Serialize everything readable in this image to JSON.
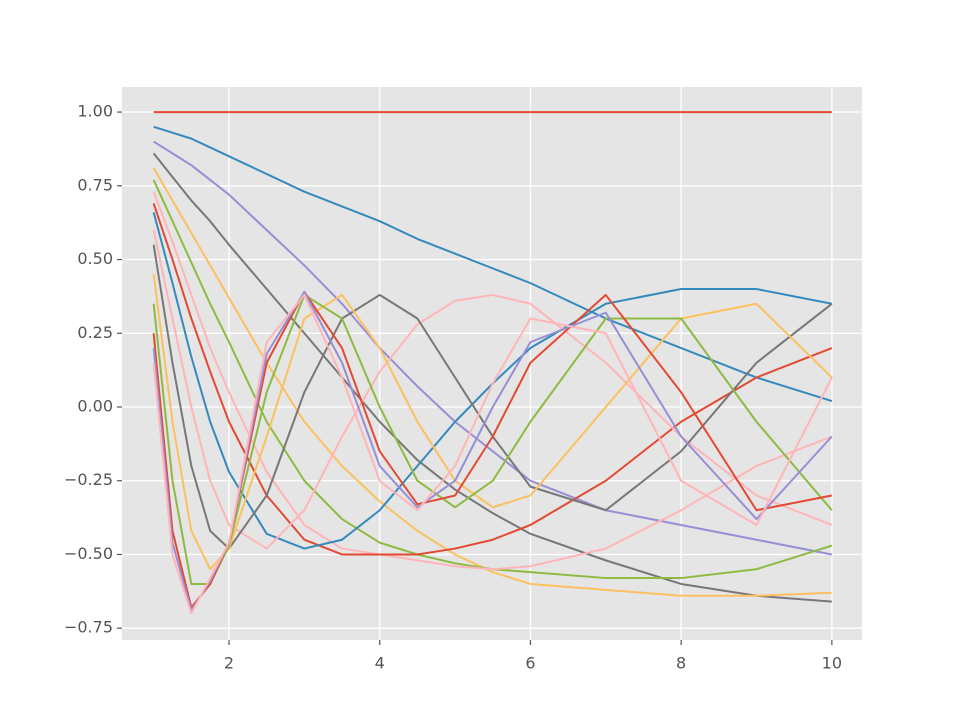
{
  "chart_data": {
    "type": "line",
    "x": [
      1,
      1.25,
      1.5,
      1.75,
      2,
      2.5,
      3,
      3.5,
      4,
      4.5,
      5,
      5.5,
      6,
      7,
      8,
      9,
      10
    ],
    "series": [
      {
        "color": "#E24A33",
        "values": [
          1,
          1,
          1,
          1,
          1,
          1,
          1,
          1,
          1,
          1,
          1,
          1,
          1,
          1,
          1,
          1,
          1
        ]
      },
      {
        "color": "#348ABD",
        "values": [
          0.95,
          0.93,
          0.91,
          0.88,
          0.85,
          0.79,
          0.73,
          0.68,
          0.63,
          0.57,
          0.52,
          0.47,
          0.42,
          0.3,
          0.2,
          0.1,
          0.02
        ]
      },
      {
        "color": "#988ED5",
        "values": [
          0.9,
          0.86,
          0.82,
          0.77,
          0.72,
          0.6,
          0.48,
          0.35,
          0.2,
          0.07,
          -0.05,
          -0.15,
          -0.25,
          -0.35,
          -0.4,
          -0.45,
          -0.5
        ]
      },
      {
        "color": "#777777",
        "values": [
          0.86,
          0.78,
          0.7,
          0.63,
          0.55,
          0.4,
          0.25,
          0.1,
          -0.05,
          -0.18,
          -0.28,
          -0.36,
          -0.43,
          -0.52,
          -0.6,
          -0.64,
          -0.66
        ]
      },
      {
        "color": "#FBC15E",
        "values": [
          0.81,
          0.7,
          0.59,
          0.48,
          0.37,
          0.15,
          -0.05,
          -0.2,
          -0.32,
          -0.42,
          -0.5,
          -0.56,
          -0.6,
          -0.62,
          -0.64,
          -0.64,
          -0.63
        ]
      },
      {
        "color": "#8EBA42",
        "values": [
          0.77,
          0.63,
          0.49,
          0.35,
          0.22,
          -0.05,
          -0.25,
          -0.38,
          -0.46,
          -0.5,
          -0.53,
          -0.55,
          -0.56,
          -0.58,
          -0.58,
          -0.55,
          -0.47
        ]
      },
      {
        "color": "#FFB5B8",
        "values": [
          0.73,
          0.56,
          0.38,
          0.2,
          0.05,
          -0.22,
          -0.4,
          -0.48,
          -0.5,
          -0.52,
          -0.54,
          -0.55,
          -0.54,
          -0.48,
          -0.35,
          -0.2,
          -0.1
        ]
      },
      {
        "color": "#E24A33",
        "values": [
          0.69,
          0.5,
          0.3,
          0.12,
          -0.05,
          -0.3,
          -0.45,
          -0.5,
          -0.5,
          -0.5,
          -0.48,
          -0.45,
          -0.4,
          -0.25,
          -0.05,
          0.1,
          0.2
        ]
      },
      {
        "color": "#348ABD",
        "values": [
          0.66,
          0.42,
          0.17,
          -0.05,
          -0.22,
          -0.43,
          -0.48,
          -0.45,
          -0.35,
          -0.2,
          -0.05,
          0.08,
          0.2,
          0.35,
          0.4,
          0.4,
          0.35
        ]
      },
      {
        "color": "#FFB5B8",
        "values": [
          0.6,
          0.3,
          0.0,
          -0.25,
          -0.4,
          -0.48,
          -0.35,
          -0.1,
          0.12,
          0.28,
          0.36,
          0.38,
          0.35,
          0.15,
          -0.1,
          -0.3,
          -0.4
        ]
      },
      {
        "color": "#777777",
        "values": [
          0.55,
          0.15,
          -0.2,
          -0.42,
          -0.48,
          -0.3,
          0.05,
          0.3,
          0.38,
          0.3,
          0.1,
          -0.1,
          -0.27,
          -0.35,
          -0.15,
          0.15,
          0.35
        ]
      },
      {
        "color": "#FBC15E",
        "values": [
          0.45,
          -0.05,
          -0.42,
          -0.55,
          -0.48,
          -0.1,
          0.3,
          0.38,
          0.2,
          -0.05,
          -0.25,
          -0.34,
          -0.3,
          0.0,
          0.3,
          0.35,
          0.1
        ]
      },
      {
        "color": "#8EBA42",
        "values": [
          0.35,
          -0.25,
          -0.6,
          -0.6,
          -0.47,
          0.05,
          0.38,
          0.3,
          0.0,
          -0.25,
          -0.34,
          -0.25,
          -0.05,
          0.3,
          0.3,
          -0.05,
          -0.35
        ]
      },
      {
        "color": "#E24A33",
        "values": [
          0.25,
          -0.42,
          -0.68,
          -0.6,
          -0.46,
          0.15,
          0.39,
          0.2,
          -0.15,
          -0.33,
          -0.3,
          -0.1,
          0.15,
          0.38,
          0.05,
          -0.35,
          -0.3
        ]
      },
      {
        "color": "#988ED5",
        "values": [
          0.2,
          -0.46,
          -0.69,
          -0.59,
          -0.46,
          0.18,
          0.39,
          0.15,
          -0.2,
          -0.34,
          -0.25,
          0.0,
          0.22,
          0.32,
          -0.1,
          -0.38,
          -0.1
        ]
      },
      {
        "color": "#FFB5B8",
        "values": [
          0.15,
          -0.5,
          -0.7,
          -0.58,
          -0.46,
          0.22,
          0.38,
          0.1,
          -0.25,
          -0.35,
          -0.2,
          0.08,
          0.3,
          0.25,
          -0.25,
          -0.4,
          0.1
        ]
      }
    ],
    "xlim": [
      0.58,
      10.4
    ],
    "ylim": [
      -0.79,
      1.085
    ],
    "xticks": [
      2,
      4,
      6,
      8,
      10
    ],
    "yticks": [
      {
        "value": -0.75,
        "label": "−0.75"
      },
      {
        "value": -0.5,
        "label": "−0.50"
      },
      {
        "value": -0.25,
        "label": "−0.25"
      },
      {
        "value": 0,
        "label": "0.00"
      },
      {
        "value": 0.25,
        "label": "0.25"
      },
      {
        "value": 0.5,
        "label": "0.50"
      },
      {
        "value": 0.75,
        "label": "0.75"
      },
      {
        "value": 1,
        "label": "1.00"
      }
    ],
    "grid": true
  }
}
